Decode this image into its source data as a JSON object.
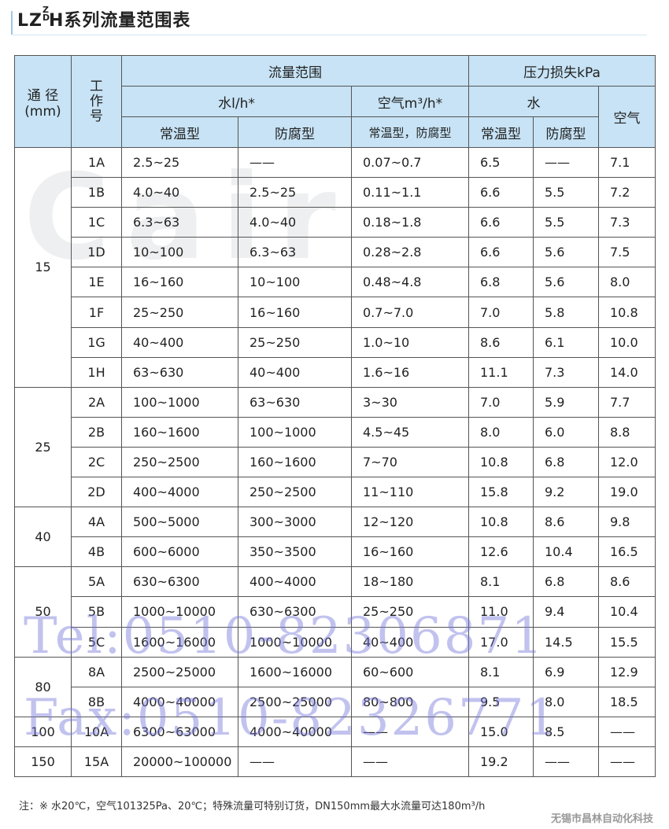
{
  "title": {
    "prefix": "LZ",
    "sup_top": "Z",
    "sup_bottom": "D",
    "suffix": "H系列流量范围表"
  },
  "headers": {
    "diameter": "通 径 (mm)",
    "model": "工 作 号",
    "flow_range": "流量范围",
    "pressure_loss": "压力损失kPa",
    "water_flow": "水l/h*",
    "air_flow": "空气m³/h*",
    "water_loss": "水",
    "air_loss": "空气",
    "normal": "常温型",
    "anticorrosion": "防腐型",
    "normal_anti": "常温型，防腐型",
    "loss_normal": "常温型",
    "loss_anti": "防腐型"
  },
  "groups": [
    {
      "dn": "15",
      "rows": [
        [
          "1A",
          "2.5~25",
          "——",
          "0.07~0.7",
          "6.5",
          "——",
          "7.1"
        ],
        [
          "1B",
          "4.0~40",
          "2.5~25",
          "0.11~1.1",
          "6.6",
          "5.5",
          "7.2"
        ],
        [
          "1C",
          "6.3~63",
          "4.0~40",
          "0.18~1.8",
          "6.6",
          "5.5",
          "7.3"
        ],
        [
          "1D",
          "10~100",
          "6.3~63",
          "0.28~2.8",
          "6.6",
          "5.6",
          "7.5"
        ],
        [
          "1E",
          "16~160",
          "10~100",
          "0.48~4.8",
          "6.8",
          "5.6",
          "8.0"
        ],
        [
          "1F",
          "25~250",
          "16~160",
          "0.7~7.0",
          "7.0",
          "5.8",
          "10.8"
        ],
        [
          "1G",
          "40~400",
          "25~250",
          "1.0~10",
          "8.6",
          "6.1",
          "10.0"
        ],
        [
          "1H",
          "63~630",
          "40~400",
          "1.6~16",
          "11.1",
          "7.3",
          "14.0"
        ]
      ]
    },
    {
      "dn": "25",
      "rows": [
        [
          "2A",
          "100~1000",
          "63~630",
          "3~30",
          "7.0",
          "5.9",
          "7.7"
        ],
        [
          "2B",
          "160~1600",
          "100~1000",
          "4.5~45",
          "8.0",
          "6.0",
          "8.8"
        ],
        [
          "2C",
          "250~2500",
          "160~1600",
          "7~70",
          "10.8",
          "6.8",
          "12.0"
        ],
        [
          "2D",
          "400~4000",
          "250~2500",
          "11~110",
          "15.8",
          "9.2",
          "19.0"
        ]
      ]
    },
    {
      "dn": "40",
      "rows": [
        [
          "4A",
          "500~5000",
          "300~3000",
          "12~120",
          "10.8",
          "8.6",
          "9.8"
        ],
        [
          "4B",
          "600~6000",
          "350~3500",
          "16~160",
          "12.6",
          "10.4",
          "16.5"
        ]
      ]
    },
    {
      "dn": "50",
      "rows": [
        [
          "5A",
          "630~6300",
          "400~4000",
          "18~180",
          "8.1",
          "6.8",
          "8.6"
        ],
        [
          "5B",
          "1000~10000",
          "630~6300",
          "25~250",
          "11.0",
          "9.4",
          "10.4"
        ],
        [
          "5C",
          "1600~16000",
          "1000~10000",
          "40~400",
          "17.0",
          "14.5",
          "15.5"
        ]
      ]
    },
    {
      "dn": "80",
      "rows": [
        [
          "8A",
          "2500~25000",
          "1600~16000",
          "60~600",
          "8.1",
          "6.9",
          "12.9"
        ],
        [
          "8B",
          "4000~40000",
          "2500~25000",
          "80~800",
          "9.5",
          "8.0",
          "18.5"
        ]
      ]
    },
    {
      "dn": "100",
      "rows": [
        [
          "10A",
          "6300~63000",
          "4000~40000",
          "——",
          "15.0",
          "8.5",
          "——"
        ]
      ]
    },
    {
      "dn": "150",
      "rows": [
        [
          "15A",
          "20000~100000",
          "——",
          "——",
          "19.2",
          "——",
          "——"
        ]
      ]
    }
  ],
  "note": "注：※   水20℃，空气101325Pa、20℃；特殊流量可特别订货，DN150mm最大水流量可达180m³/h",
  "watermarks": {
    "tel": "Tel:0510-82306871",
    "fax": "Fax:0510-82326771",
    "logo": "Cair"
  },
  "company": "无锡市昌林自动化科技",
  "colors": {
    "header_bg": "#c7e3f5",
    "watermark": "#7878dc"
  }
}
